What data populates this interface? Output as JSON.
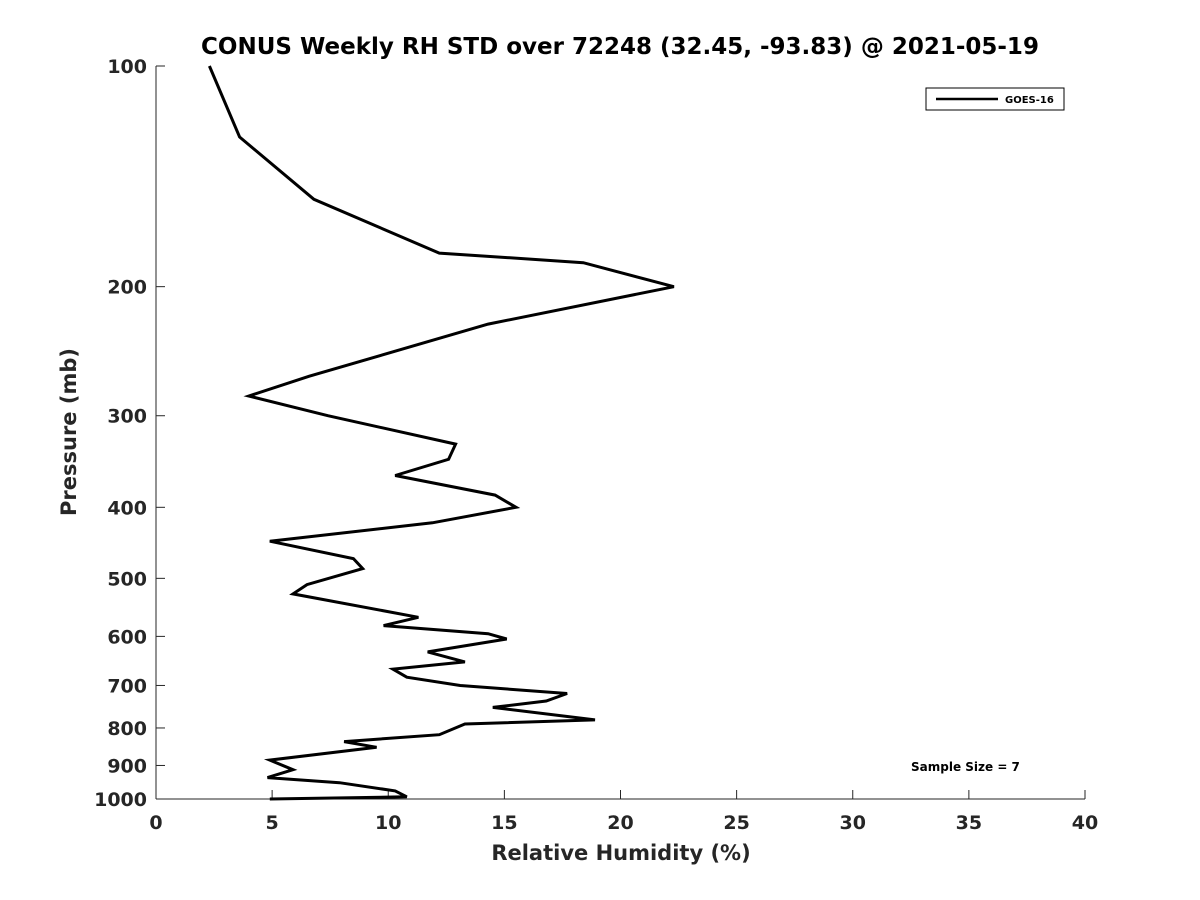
{
  "chart_data": {
    "type": "line",
    "title": "CONUS Weekly RH STD over 72248 (32.45, -93.83) @ 2021-05-19",
    "xlabel": "Relative Humidity (%)",
    "ylabel": "Pressure (mb)",
    "xlim": [
      0,
      40
    ],
    "ylim": [
      100,
      1000
    ],
    "y_scale": "log",
    "y_reversed": true,
    "x_ticks": [
      "0",
      "5",
      "10",
      "15",
      "20",
      "25",
      "30",
      "35",
      "40"
    ],
    "x_tick_values": [
      0,
      5,
      10,
      15,
      20,
      25,
      30,
      35,
      40
    ],
    "y_ticks": [
      "100",
      "200",
      "300",
      "400",
      "500",
      "600",
      "700",
      "800",
      "900",
      "1000"
    ],
    "y_tick_values": [
      100,
      200,
      300,
      400,
      500,
      600,
      700,
      800,
      900,
      1000
    ],
    "grid": false,
    "legend_position": "top-right",
    "colors": {
      "line": "#000000",
      "axis": "#262626"
    },
    "annotation": "Sample Size = 7",
    "series": [
      {
        "name": "GOES-16",
        "points": [
          [
            2.3,
            100
          ],
          [
            3.6,
            125
          ],
          [
            6.8,
            152
          ],
          [
            12.2,
            180
          ],
          [
            18.4,
            185.5
          ],
          [
            22.3,
            200
          ],
          [
            14.3,
            225
          ],
          [
            6.6,
            265
          ],
          [
            4.0,
            282
          ],
          [
            7.4,
            300
          ],
          [
            12.9,
            328
          ],
          [
            12.6,
            344
          ],
          [
            10.3,
            362
          ],
          [
            14.6,
            385
          ],
          [
            15.5,
            400
          ],
          [
            11.9,
            420
          ],
          [
            4.9,
            445
          ],
          [
            8.5,
            470
          ],
          [
            8.9,
            485
          ],
          [
            6.5,
            510
          ],
          [
            5.9,
            525
          ],
          [
            11.3,
            565
          ],
          [
            9.8,
            580
          ],
          [
            14.3,
            595
          ],
          [
            15.1,
            605
          ],
          [
            11.7,
            630
          ],
          [
            13.3,
            650
          ],
          [
            10.2,
            665
          ],
          [
            10.8,
            682
          ],
          [
            13.1,
            700
          ],
          [
            17.7,
            718
          ],
          [
            16.8,
            735
          ],
          [
            14.5,
            750
          ],
          [
            18.9,
            780
          ],
          [
            13.3,
            790
          ],
          [
            12.2,
            817
          ],
          [
            8.1,
            835
          ],
          [
            9.5,
            850
          ],
          [
            4.9,
            885
          ],
          [
            5.9,
            912
          ],
          [
            4.8,
            935
          ],
          [
            7.9,
            950
          ],
          [
            10.3,
            975
          ],
          [
            10.8,
            993
          ],
          [
            4.9,
            1000
          ]
        ]
      }
    ]
  }
}
